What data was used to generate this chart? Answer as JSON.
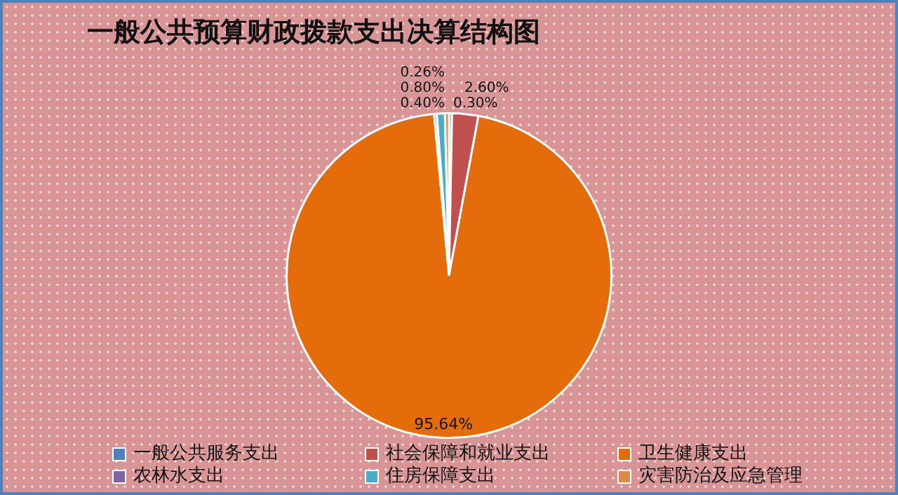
{
  "chart_data": {
    "type": "pie",
    "title": "一般公共预算财政拨款支出决算结构图",
    "categories": [
      "一般公共服务支出",
      "社会保障和就业支出",
      "卫生健康支出",
      "农林水支出",
      "住房保障支出",
      "灾害防治及应急管理"
    ],
    "values": [
      0.3,
      2.6,
      95.64,
      0.26,
      0.8,
      0.4
    ],
    "colors": [
      "#4f81bd",
      "#c0504d",
      "#e46c0a",
      "#8064a2",
      "#4bacc6",
      "#dd8a47"
    ],
    "value_labels": [
      "0.30%",
      "2.60%",
      "95.64%",
      "0.26%",
      "0.80%",
      "0.40%"
    ],
    "legend": "bottom"
  }
}
